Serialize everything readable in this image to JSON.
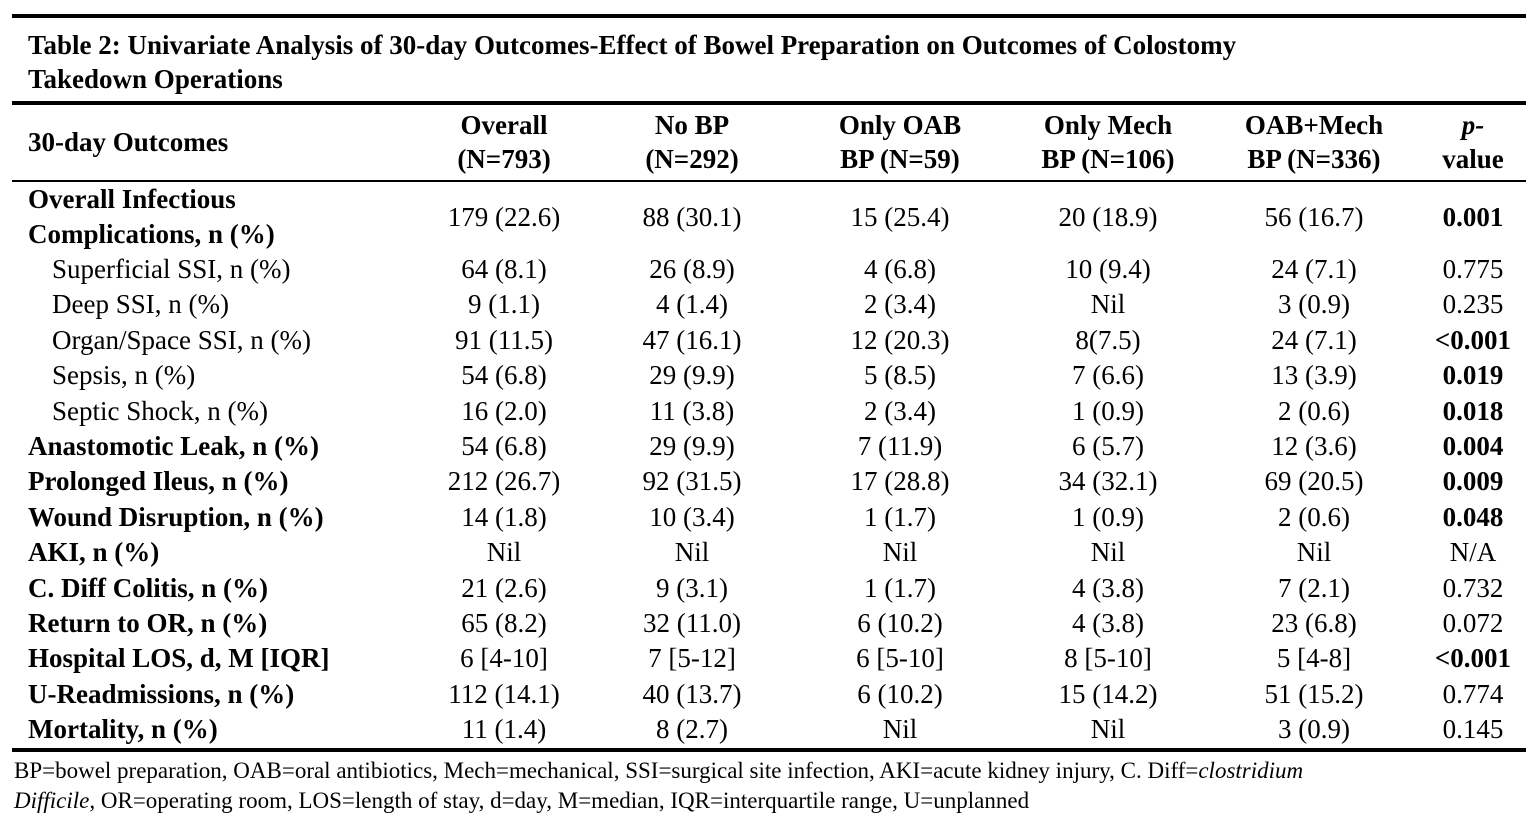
{
  "table": {
    "caption": "Table 2: Univariate Analysis of 30-day Outcomes-Effect of Bowel Preparation on Outcomes of Colostomy Takedown Operations",
    "caption_line1": "Table 2: Univariate Analysis of 30-day Outcomes-Effect of Bowel Preparation on Outcomes of Colostomy",
    "caption_line2": "Takedown Operations",
    "headers": [
      {
        "line1": "30-day Outcomes",
        "line2": ""
      },
      {
        "line1": "Overall",
        "line2": "(N=793)"
      },
      {
        "line1": "No BP",
        "line2": "(N=292)"
      },
      {
        "line1": "Only OAB",
        "line2": "BP (N=59)"
      },
      {
        "line1": "Only Mech",
        "line2": "BP (N=106)"
      },
      {
        "line1": "OAB+Mech",
        "line2": "BP (N=336)"
      },
      {
        "line1": "p-",
        "line2": "value"
      }
    ],
    "rows": [
      {
        "label": "Overall Infectious Complications, n (%)",
        "label_line1": "Overall Infectious",
        "label_line2": "Complications, n (%)",
        "level": "main",
        "values": [
          "179 (22.6)",
          "88 (30.1)",
          "15 (25.4)",
          "20 (18.9)",
          "56 (16.7)"
        ],
        "p": "0.001",
        "p_bold": true
      },
      {
        "label": "Superficial SSI, n (%)",
        "level": "sub",
        "values": [
          "64 (8.1)",
          "26 (8.9)",
          "4 (6.8)",
          "10 (9.4)",
          "24 (7.1)"
        ],
        "p": "0.775",
        "p_bold": false
      },
      {
        "label": "Deep SSI, n (%)",
        "level": "sub",
        "values": [
          "9 (1.1)",
          "4 (1.4)",
          "2 (3.4)",
          "Nil",
          "3 (0.9)"
        ],
        "p": "0.235",
        "p_bold": false
      },
      {
        "label": "Organ/Space SSI, n (%)",
        "level": "sub",
        "values": [
          "91 (11.5)",
          "47 (16.1)",
          "12 (20.3)",
          "8(7.5)",
          "24 (7.1)"
        ],
        "p": "<0.001",
        "p_bold": true
      },
      {
        "label": "Sepsis, n (%)",
        "level": "sub",
        "values": [
          "54 (6.8)",
          "29 (9.9)",
          "5 (8.5)",
          "7 (6.6)",
          "13 (3.9)"
        ],
        "p": "0.019",
        "p_bold": true
      },
      {
        "label": "Septic Shock, n (%)",
        "level": "sub",
        "values": [
          "16 (2.0)",
          "11 (3.8)",
          "2 (3.4)",
          "1 (0.9)",
          "2 (0.6)"
        ],
        "p": "0.018",
        "p_bold": true
      },
      {
        "label": "Anastomotic Leak, n (%)",
        "level": "main",
        "values": [
          "54 (6.8)",
          "29 (9.9)",
          "7 (11.9)",
          "6 (5.7)",
          "12 (3.6)"
        ],
        "p": "0.004",
        "p_bold": true
      },
      {
        "label": "Prolonged Ileus, n (%)",
        "level": "main",
        "values": [
          "212 (26.7)",
          "92 (31.5)",
          "17 (28.8)",
          "34 (32.1)",
          "69 (20.5)"
        ],
        "p": "0.009",
        "p_bold": true
      },
      {
        "label": "Wound Disruption, n (%)",
        "level": "main",
        "values": [
          "14 (1.8)",
          "10 (3.4)",
          "1 (1.7)",
          "1 (0.9)",
          "2 (0.6)"
        ],
        "p": "0.048",
        "p_bold": true
      },
      {
        "label": "AKI, n (%)",
        "level": "main",
        "values": [
          "Nil",
          "Nil",
          "Nil",
          "Nil",
          "Nil"
        ],
        "p": "N/A",
        "p_bold": false
      },
      {
        "label": "C. Diff Colitis, n (%)",
        "level": "main",
        "values": [
          "21 (2.6)",
          "9 (3.1)",
          "1 (1.7)",
          "4 (3.8)",
          "7 (2.1)"
        ],
        "p": "0.732",
        "p_bold": false
      },
      {
        "label": "Return to OR, n (%)",
        "level": "main",
        "values": [
          "65 (8.2)",
          "32 (11.0)",
          "6 (10.2)",
          "4 (3.8)",
          "23 (6.8)"
        ],
        "p": "0.072",
        "p_bold": false
      },
      {
        "label": "Hospital LOS, d, M [IQR]",
        "level": "main",
        "values": [
          "6 [4-10]",
          "7 [5-12]",
          "6 [5-10]",
          "8 [5-10]",
          "5 [4-8]"
        ],
        "p": "<0.001",
        "p_bold": true
      },
      {
        "label": "U-Readmissions, n (%)",
        "level": "main",
        "values": [
          "112 (14.1)",
          "40 (13.7)",
          "6 (10.2)",
          "15 (14.2)",
          "51 (15.2)"
        ],
        "p": "0.774",
        "p_bold": false
      },
      {
        "label": "Mortality, n (%)",
        "level": "main",
        "values": [
          "11 (1.4)",
          "8 (2.7)",
          "Nil",
          "Nil",
          "3 (0.9)"
        ],
        "p": "0.145",
        "p_bold": false
      }
    ],
    "footnote": {
      "part1": "BP=bowel preparation, OAB=oral antibiotics, Mech=mechanical, SSI=surgical site infection, AKI=acute kidney injury, C. Diff=",
      "italic1": "clostridium",
      "italic2": "Difficile,",
      "part2": " OR=operating room, LOS=length of stay, d=day, M=median, IQR=interquartile range, U=unplanned"
    }
  }
}
